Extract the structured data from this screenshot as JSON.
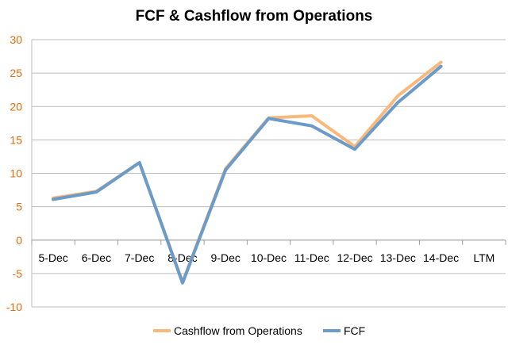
{
  "chart_data": {
    "type": "line",
    "title": "FCF & Cashflow from Operations",
    "xlabel": "",
    "ylabel": "",
    "categories": [
      "5-Dec",
      "6-Dec",
      "7-Dec",
      "8-Dec",
      "9-Dec",
      "10-Dec",
      "11-Dec",
      "12-Dec",
      "13-Dec",
      "14-Dec",
      "LTM"
    ],
    "ylim": [
      -10,
      30
    ],
    "yticks": [
      -10,
      -5,
      0,
      5,
      10,
      15,
      20,
      25,
      30
    ],
    "grid": true,
    "legend_position": "bottom",
    "series": [
      {
        "name": "Cashflow from Operations",
        "color": "#f9b97c",
        "values": [
          6.3,
          7.3,
          11.6,
          -6.3,
          10.7,
          18.3,
          18.6,
          14.0,
          21.6,
          26.6,
          null
        ]
      },
      {
        "name": "FCF",
        "color": "#6a9bc9",
        "values": [
          6.1,
          7.2,
          11.6,
          -6.4,
          10.5,
          18.2,
          17.1,
          13.6,
          20.6,
          26.0,
          null
        ]
      }
    ]
  }
}
